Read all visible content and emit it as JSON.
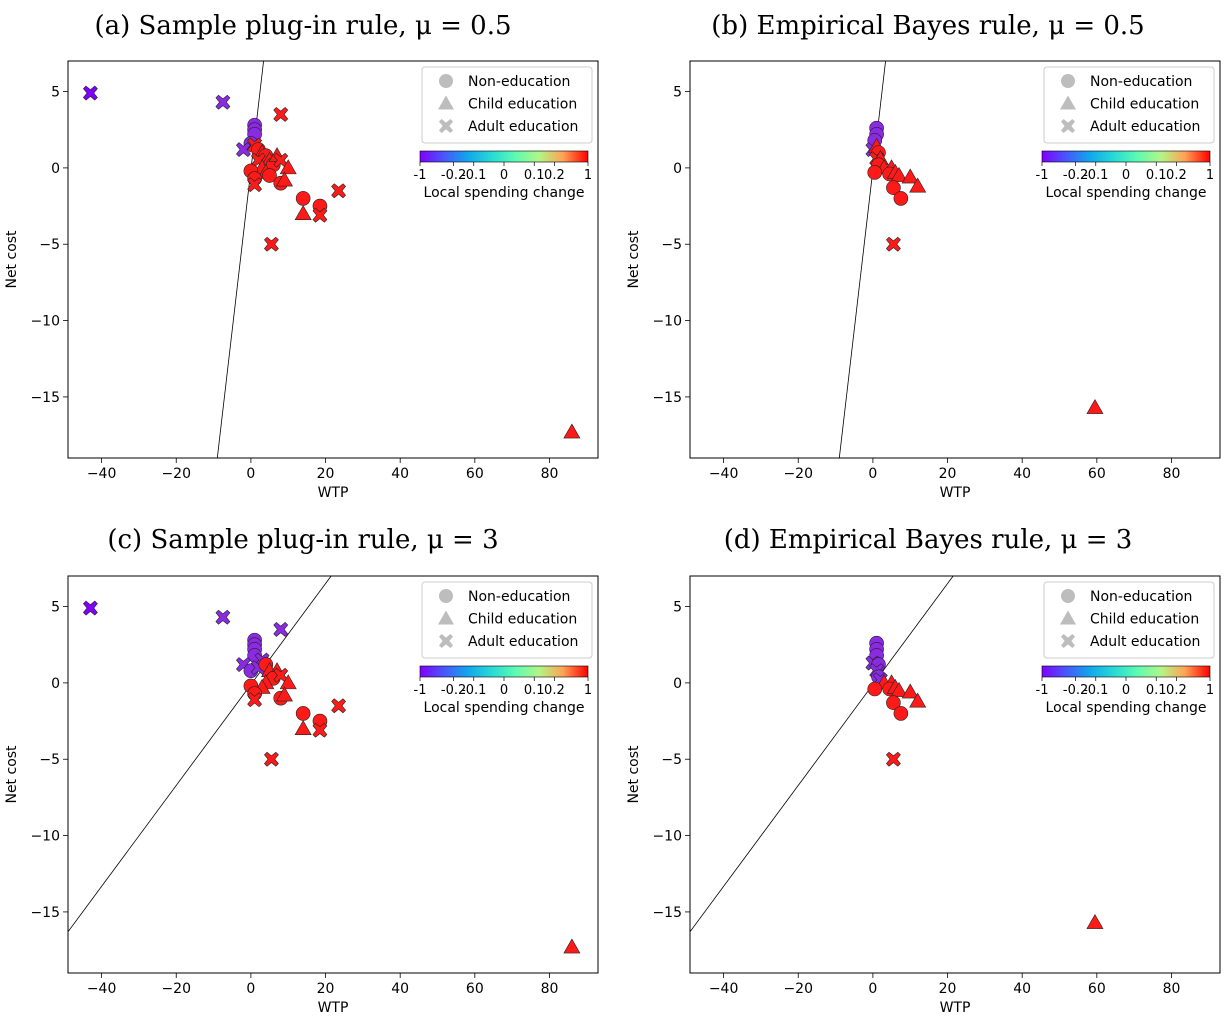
{
  "chart_data": [
    {
      "type": "scatter",
      "title": "(a) Sample plug-in rule, μ = 0.5",
      "xlabel": "WTP",
      "ylabel": "Net cost",
      "xlim": [
        -49,
        93
      ],
      "ylim": [
        -19,
        7
      ],
      "xticks": [
        -40,
        -20,
        0,
        20,
        40,
        60,
        80
      ],
      "yticks": [
        5,
        0,
        -5,
        -10,
        -15
      ],
      "line": {
        "x1": -9,
        "y1": -19,
        "x2": 3.4,
        "y2": 7
      },
      "legend": {
        "placement": "top-right",
        "entries": [
          "Non-education",
          "Child education",
          "Adult education"
        ]
      },
      "colorbar": {
        "label": "Local spending change",
        "ticks": [
          "-1",
          "-0.2",
          "-0.1",
          "0",
          "0.1",
          "0.2",
          "1"
        ]
      },
      "points": [
        {
          "x": -43,
          "y": 4.9,
          "shape": "x",
          "c": -1
        },
        {
          "x": -7.5,
          "y": 4.3,
          "shape": "x",
          "c": -0.8
        },
        {
          "x": 8,
          "y": 3.5,
          "shape": "x",
          "c": 1
        },
        {
          "x": 1,
          "y": 2.8,
          "shape": "o",
          "c": -0.8
        },
        {
          "x": 1,
          "y": 2.5,
          "shape": "o",
          "c": -0.7
        },
        {
          "x": 1,
          "y": 2.2,
          "shape": "o",
          "c": -0.7
        },
        {
          "x": 0,
          "y": 1.6,
          "shape": "o",
          "c": -0.5
        },
        {
          "x": -2,
          "y": 1.2,
          "shape": "x",
          "c": -0.6
        },
        {
          "x": 1,
          "y": 1.5,
          "shape": "x",
          "c": 1
        },
        {
          "x": 2,
          "y": 1.2,
          "shape": "o",
          "c": 1
        },
        {
          "x": 3,
          "y": 1.0,
          "shape": "^",
          "c": 1
        },
        {
          "x": 4,
          "y": 0.8,
          "shape": "o",
          "c": 1
        },
        {
          "x": 2,
          "y": 0.5,
          "shape": "x",
          "c": 1
        },
        {
          "x": 5,
          "y": 0.5,
          "shape": "^",
          "c": 1
        },
        {
          "x": 6,
          "y": 0.2,
          "shape": "o",
          "c": 1
        },
        {
          "x": 3,
          "y": 0.0,
          "shape": "^",
          "c": 1
        },
        {
          "x": 7,
          "y": 0.8,
          "shape": "^",
          "c": 1
        },
        {
          "x": 8,
          "y": 0.5,
          "shape": "x",
          "c": 1
        },
        {
          "x": 10,
          "y": 0.0,
          "shape": "^",
          "c": 1
        },
        {
          "x": 0,
          "y": -0.2,
          "shape": "o",
          "c": 1
        },
        {
          "x": 4,
          "y": -0.3,
          "shape": "^",
          "c": 1
        },
        {
          "x": 1,
          "y": -0.7,
          "shape": "o",
          "c": 1
        },
        {
          "x": 5,
          "y": -0.5,
          "shape": "o",
          "c": 1
        },
        {
          "x": 1,
          "y": -1.1,
          "shape": "x",
          "c": 1
        },
        {
          "x": 8,
          "y": -1.0,
          "shape": "o",
          "c": 1
        },
        {
          "x": 9,
          "y": -0.8,
          "shape": "^",
          "c": 1
        },
        {
          "x": 14,
          "y": -2.0,
          "shape": "o",
          "c": 1
        },
        {
          "x": 18.5,
          "y": -2.5,
          "shape": "o",
          "c": 1
        },
        {
          "x": 23.5,
          "y": -1.5,
          "shape": "x",
          "c": 1
        },
        {
          "x": 14,
          "y": -3.0,
          "shape": "^",
          "c": 1
        },
        {
          "x": 18.5,
          "y": -3.1,
          "shape": "x",
          "c": 1
        },
        {
          "x": 5.5,
          "y": -5.0,
          "shape": "x",
          "c": 1
        },
        {
          "x": 86,
          "y": -17.3,
          "shape": "^",
          "c": 1
        }
      ]
    },
    {
      "type": "scatter",
      "title": "(b) Empirical Bayes rule, μ = 0.5",
      "xlabel": "WTP",
      "ylabel": "Net cost",
      "xlim": [
        -49,
        93
      ],
      "ylim": [
        -19,
        7
      ],
      "xticks": [
        -40,
        -20,
        0,
        20,
        40,
        60,
        80
      ],
      "yticks": [
        5,
        0,
        -5,
        -10,
        -15
      ],
      "line": {
        "x1": -9,
        "y1": -19,
        "x2": 3.4,
        "y2": 7
      },
      "legend": {
        "placement": "top-right",
        "entries": [
          "Non-education",
          "Child education",
          "Adult education"
        ]
      },
      "colorbar": {
        "label": "Local spending change",
        "ticks": [
          "-1",
          "-0.2",
          "-0.1",
          "0",
          "0.1",
          "0.2",
          "1"
        ]
      },
      "points": [
        {
          "x": 1,
          "y": 2.6,
          "shape": "o",
          "c": -0.8
        },
        {
          "x": 1,
          "y": 2.2,
          "shape": "o",
          "c": -0.7
        },
        {
          "x": 0.5,
          "y": 1.8,
          "shape": "o",
          "c": -0.6
        },
        {
          "x": 0,
          "y": 1.2,
          "shape": "x",
          "c": -0.7
        },
        {
          "x": 1,
          "y": 1.4,
          "shape": "^",
          "c": 1
        },
        {
          "x": 1.5,
          "y": 1.0,
          "shape": "o",
          "c": 1
        },
        {
          "x": 1,
          "y": 0.6,
          "shape": "x",
          "c": 1
        },
        {
          "x": 2,
          "y": 0.6,
          "shape": "^",
          "c": 1
        },
        {
          "x": 1.5,
          "y": 0.2,
          "shape": "o",
          "c": 1
        },
        {
          "x": 3,
          "y": 0.0,
          "shape": "^",
          "c": 1
        },
        {
          "x": 0.5,
          "y": -0.3,
          "shape": "o",
          "c": 1
        },
        {
          "x": 5,
          "y": 0.0,
          "shape": "^",
          "c": 1
        },
        {
          "x": 4.5,
          "y": -0.4,
          "shape": "o",
          "c": 1
        },
        {
          "x": 6,
          "y": -0.3,
          "shape": "^",
          "c": 1
        },
        {
          "x": 7,
          "y": -0.5,
          "shape": "^",
          "c": 1
        },
        {
          "x": 10,
          "y": -0.6,
          "shape": "^",
          "c": 1
        },
        {
          "x": 5.5,
          "y": -1.3,
          "shape": "o",
          "c": 1
        },
        {
          "x": 12,
          "y": -1.2,
          "shape": "^",
          "c": 1
        },
        {
          "x": 7.5,
          "y": -2.0,
          "shape": "o",
          "c": 1
        },
        {
          "x": 5.5,
          "y": -5.0,
          "shape": "x",
          "c": 1
        },
        {
          "x": 59.5,
          "y": -15.7,
          "shape": "^",
          "c": 1
        }
      ]
    },
    {
      "type": "scatter",
      "title": "(c) Sample plug-in rule, μ = 3",
      "xlabel": "WTP",
      "ylabel": "Net cost",
      "xlim": [
        -49,
        93
      ],
      "ylim": [
        -19,
        7
      ],
      "xticks": [
        -40,
        -20,
        0,
        20,
        40,
        60,
        80
      ],
      "yticks": [
        5,
        0,
        -5,
        -10,
        -15
      ],
      "line": {
        "x1": -49,
        "y1": -16.3,
        "x2": 21.5,
        "y2": 7
      },
      "legend": {
        "placement": "top-right",
        "entries": [
          "Non-education",
          "Child education",
          "Adult education"
        ]
      },
      "colorbar": {
        "label": "Local spending change",
        "ticks": [
          "-1",
          "-0.2",
          "-0.1",
          "0",
          "0.1",
          "0.2",
          "1"
        ]
      },
      "points": [
        {
          "x": -43,
          "y": 4.9,
          "shape": "x",
          "c": -1
        },
        {
          "x": -7.5,
          "y": 4.3,
          "shape": "x",
          "c": -0.8
        },
        {
          "x": 8,
          "y": 3.5,
          "shape": "x",
          "c": -0.7
        },
        {
          "x": 1,
          "y": 2.8,
          "shape": "o",
          "c": -0.8
        },
        {
          "x": 1,
          "y": 2.5,
          "shape": "o",
          "c": -0.7
        },
        {
          "x": 1,
          "y": 2.2,
          "shape": "o",
          "c": -0.7
        },
        {
          "x": 1,
          "y": 1.8,
          "shape": "o",
          "c": -0.6
        },
        {
          "x": -2,
          "y": 1.2,
          "shape": "x",
          "c": -0.6
        },
        {
          "x": 3,
          "y": 1.5,
          "shape": "x",
          "c": -0.6
        },
        {
          "x": 0,
          "y": 0.8,
          "shape": "o",
          "c": -0.5
        },
        {
          "x": 2,
          "y": 1.0,
          "shape": "x",
          "c": -0.6
        },
        {
          "x": 4,
          "y": 1.2,
          "shape": "o",
          "c": 1
        },
        {
          "x": 5,
          "y": 0.8,
          "shape": "^",
          "c": 1
        },
        {
          "x": 7,
          "y": 0.8,
          "shape": "^",
          "c": 1
        },
        {
          "x": 6,
          "y": 0.3,
          "shape": "o",
          "c": 1
        },
        {
          "x": 8,
          "y": 0.5,
          "shape": "x",
          "c": 1
        },
        {
          "x": 4,
          "y": 0.0,
          "shape": "^",
          "c": 1
        },
        {
          "x": 10,
          "y": 0.0,
          "shape": "^",
          "c": 1
        },
        {
          "x": 0,
          "y": -0.2,
          "shape": "o",
          "c": 1
        },
        {
          "x": 3,
          "y": -0.3,
          "shape": "^",
          "c": 1
        },
        {
          "x": 1,
          "y": -0.7,
          "shape": "o",
          "c": 1
        },
        {
          "x": 1,
          "y": -1.1,
          "shape": "x",
          "c": 1
        },
        {
          "x": 8,
          "y": -1.0,
          "shape": "o",
          "c": 1
        },
        {
          "x": 9,
          "y": -0.8,
          "shape": "^",
          "c": 1
        },
        {
          "x": 14,
          "y": -2.0,
          "shape": "o",
          "c": 1
        },
        {
          "x": 18.5,
          "y": -2.5,
          "shape": "o",
          "c": 1
        },
        {
          "x": 23.5,
          "y": -1.5,
          "shape": "x",
          "c": 1
        },
        {
          "x": 14,
          "y": -3.0,
          "shape": "^",
          "c": 1
        },
        {
          "x": 18.5,
          "y": -3.1,
          "shape": "x",
          "c": 1
        },
        {
          "x": 5.5,
          "y": -5.0,
          "shape": "x",
          "c": 1
        },
        {
          "x": 86,
          "y": -17.3,
          "shape": "^",
          "c": 1
        }
      ]
    },
    {
      "type": "scatter",
      "title": "(d) Empirical Bayes rule, μ = 3",
      "xlabel": "WTP",
      "ylabel": "Net cost",
      "xlim": [
        -49,
        93
      ],
      "ylim": [
        -19,
        7
      ],
      "xticks": [
        -40,
        -20,
        0,
        20,
        40,
        60,
        80
      ],
      "yticks": [
        5,
        0,
        -5,
        -10,
        -15
      ],
      "line": {
        "x1": -49,
        "y1": -16.3,
        "x2": 21.5,
        "y2": 7
      },
      "legend": {
        "placement": "top-right",
        "entries": [
          "Non-education",
          "Child education",
          "Adult education"
        ]
      },
      "colorbar": {
        "label": "Local spending change",
        "ticks": [
          "-1",
          "-0.2",
          "-0.1",
          "0",
          "0.1",
          "0.2",
          "1"
        ]
      },
      "points": [
        {
          "x": 1,
          "y": 2.6,
          "shape": "o",
          "c": -0.8
        },
        {
          "x": 1,
          "y": 2.2,
          "shape": "o",
          "c": -0.7
        },
        {
          "x": 1,
          "y": 1.8,
          "shape": "o",
          "c": -0.7
        },
        {
          "x": 0,
          "y": 1.3,
          "shape": "x",
          "c": -0.7
        },
        {
          "x": 1.5,
          "y": 1.2,
          "shape": "o",
          "c": -0.6
        },
        {
          "x": 1,
          "y": 0.8,
          "shape": "x",
          "c": -0.6
        },
        {
          "x": 1.5,
          "y": 0.4,
          "shape": "o",
          "c": -0.5
        },
        {
          "x": 2,
          "y": 0.2,
          "shape": "x",
          "c": -0.5
        },
        {
          "x": 3,
          "y": 0.0,
          "shape": "^",
          "c": 1
        },
        {
          "x": 0.5,
          "y": -0.4,
          "shape": "o",
          "c": 1
        },
        {
          "x": 5,
          "y": 0.0,
          "shape": "^",
          "c": 1
        },
        {
          "x": 4.5,
          "y": -0.4,
          "shape": "o",
          "c": 1
        },
        {
          "x": 6,
          "y": -0.3,
          "shape": "^",
          "c": 1
        },
        {
          "x": 7,
          "y": -0.5,
          "shape": "^",
          "c": 1
        },
        {
          "x": 10,
          "y": -0.6,
          "shape": "^",
          "c": 1
        },
        {
          "x": 5.5,
          "y": -1.3,
          "shape": "o",
          "c": 1
        },
        {
          "x": 12,
          "y": -1.2,
          "shape": "^",
          "c": 1
        },
        {
          "x": 7.5,
          "y": -2.0,
          "shape": "o",
          "c": 1
        },
        {
          "x": 5.5,
          "y": -5.0,
          "shape": "x",
          "c": 1
        },
        {
          "x": 59.5,
          "y": -15.7,
          "shape": "^",
          "c": 1
        }
      ]
    }
  ]
}
